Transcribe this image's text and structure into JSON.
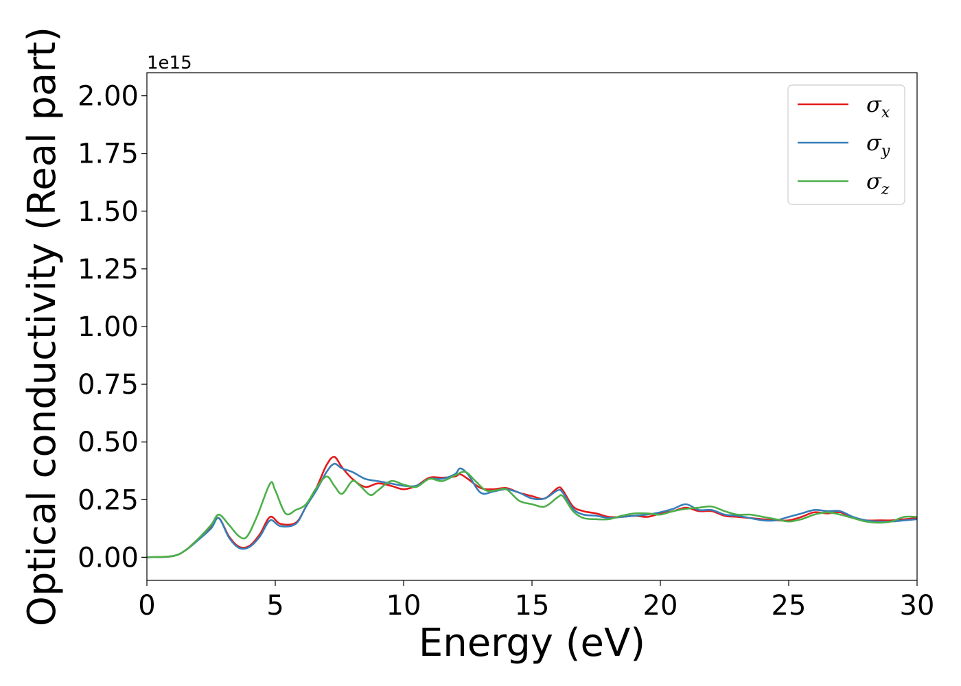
{
  "chart_data": {
    "type": "line",
    "xlabel": "Energy (eV)",
    "ylabel": "Optical conductivity (Real part)",
    "y_offset_label": "1e15",
    "xlim": [
      0,
      30
    ],
    "ylim": [
      -0.1,
      2.1
    ],
    "x_ticks": [
      0,
      5,
      10,
      15,
      20,
      25,
      30
    ],
    "x_tick_labels": [
      "0",
      "5",
      "10",
      "15",
      "20",
      "25",
      "30"
    ],
    "y_ticks": [
      0.0,
      0.25,
      0.5,
      0.75,
      1.0,
      1.25,
      1.5,
      1.75,
      2.0
    ],
    "y_tick_labels": [
      "0.00",
      "0.25",
      "0.50",
      "0.75",
      "1.00",
      "1.25",
      "1.50",
      "1.75",
      "2.00"
    ],
    "grid": false,
    "legend_position": "top-right",
    "series": [
      {
        "name": "σx",
        "symbol": "σ",
        "subscript": "x",
        "color": "#e41a1c",
        "points": [
          [
            0,
            0.0
          ],
          [
            1,
            0.005
          ],
          [
            1.5,
            0.03
          ],
          [
            2,
            0.08
          ],
          [
            2.5,
            0.13
          ],
          [
            2.8,
            0.17
          ],
          [
            3.2,
            0.09
          ],
          [
            3.6,
            0.045
          ],
          [
            4.0,
            0.05
          ],
          [
            4.4,
            0.1
          ],
          [
            4.8,
            0.175
          ],
          [
            5.2,
            0.145
          ],
          [
            5.8,
            0.15
          ],
          [
            6.2,
            0.22
          ],
          [
            6.6,
            0.3
          ],
          [
            7.0,
            0.4
          ],
          [
            7.3,
            0.435
          ],
          [
            7.6,
            0.39
          ],
          [
            8.0,
            0.34
          ],
          [
            8.5,
            0.305
          ],
          [
            9.0,
            0.32
          ],
          [
            9.5,
            0.31
          ],
          [
            10,
            0.295
          ],
          [
            10.5,
            0.31
          ],
          [
            11,
            0.345
          ],
          [
            11.5,
            0.345
          ],
          [
            12,
            0.35
          ],
          [
            12.2,
            0.36
          ],
          [
            12.5,
            0.34
          ],
          [
            13,
            0.3
          ],
          [
            13.5,
            0.295
          ],
          [
            14,
            0.3
          ],
          [
            14.5,
            0.28
          ],
          [
            15,
            0.265
          ],
          [
            15.5,
            0.255
          ],
          [
            16,
            0.3
          ],
          [
            16.2,
            0.29
          ],
          [
            16.6,
            0.22
          ],
          [
            17,
            0.2
          ],
          [
            17.5,
            0.19
          ],
          [
            18,
            0.175
          ],
          [
            18.5,
            0.175
          ],
          [
            19,
            0.18
          ],
          [
            19.5,
            0.175
          ],
          [
            20,
            0.19
          ],
          [
            20.5,
            0.2
          ],
          [
            21,
            0.215
          ],
          [
            21.5,
            0.2
          ],
          [
            22,
            0.2
          ],
          [
            22.5,
            0.18
          ],
          [
            23,
            0.175
          ],
          [
            23.5,
            0.17
          ],
          [
            24,
            0.165
          ],
          [
            24.5,
            0.16
          ],
          [
            25,
            0.16
          ],
          [
            25.5,
            0.175
          ],
          [
            26,
            0.195
          ],
          [
            26.5,
            0.19
          ],
          [
            27,
            0.195
          ],
          [
            27.5,
            0.17
          ],
          [
            28,
            0.16
          ],
          [
            28.5,
            0.16
          ],
          [
            29,
            0.16
          ],
          [
            29.5,
            0.165
          ],
          [
            30,
            0.17
          ]
        ]
      },
      {
        "name": "σy",
        "symbol": "σ",
        "subscript": "y",
        "color": "#377eb8",
        "points": [
          [
            0,
            0.0
          ],
          [
            1,
            0.005
          ],
          [
            1.5,
            0.03
          ],
          [
            2,
            0.075
          ],
          [
            2.5,
            0.125
          ],
          [
            2.8,
            0.17
          ],
          [
            3.2,
            0.085
          ],
          [
            3.6,
            0.04
          ],
          [
            4.0,
            0.045
          ],
          [
            4.4,
            0.09
          ],
          [
            4.8,
            0.16
          ],
          [
            5.2,
            0.135
          ],
          [
            5.8,
            0.145
          ],
          [
            6.2,
            0.22
          ],
          [
            6.6,
            0.29
          ],
          [
            7.0,
            0.37
          ],
          [
            7.3,
            0.405
          ],
          [
            7.6,
            0.385
          ],
          [
            8.0,
            0.37
          ],
          [
            8.5,
            0.34
          ],
          [
            9.0,
            0.33
          ],
          [
            9.5,
            0.32
          ],
          [
            10,
            0.31
          ],
          [
            10.5,
            0.31
          ],
          [
            11,
            0.34
          ],
          [
            11.5,
            0.34
          ],
          [
            12,
            0.36
          ],
          [
            12.2,
            0.385
          ],
          [
            12.5,
            0.36
          ],
          [
            13,
            0.28
          ],
          [
            13.5,
            0.285
          ],
          [
            14,
            0.295
          ],
          [
            14.5,
            0.28
          ],
          [
            15,
            0.255
          ],
          [
            15.5,
            0.255
          ],
          [
            16,
            0.29
          ],
          [
            16.2,
            0.28
          ],
          [
            16.6,
            0.21
          ],
          [
            17,
            0.185
          ],
          [
            17.5,
            0.18
          ],
          [
            18,
            0.17
          ],
          [
            18.5,
            0.175
          ],
          [
            19,
            0.18
          ],
          [
            19.5,
            0.185
          ],
          [
            20,
            0.195
          ],
          [
            20.5,
            0.21
          ],
          [
            21,
            0.23
          ],
          [
            21.5,
            0.205
          ],
          [
            22,
            0.205
          ],
          [
            22.5,
            0.185
          ],
          [
            23,
            0.18
          ],
          [
            23.5,
            0.17
          ],
          [
            24,
            0.16
          ],
          [
            24.5,
            0.16
          ],
          [
            25,
            0.175
          ],
          [
            25.5,
            0.19
          ],
          [
            26,
            0.205
          ],
          [
            26.5,
            0.2
          ],
          [
            27,
            0.2
          ],
          [
            27.5,
            0.175
          ],
          [
            28,
            0.16
          ],
          [
            28.5,
            0.155
          ],
          [
            29,
            0.155
          ],
          [
            29.5,
            0.16
          ],
          [
            30,
            0.165
          ]
        ]
      },
      {
        "name": "σz",
        "symbol": "σ",
        "subscript": "z",
        "color": "#4daf4a",
        "points": [
          [
            0,
            0.0
          ],
          [
            1,
            0.005
          ],
          [
            1.5,
            0.03
          ],
          [
            2,
            0.08
          ],
          [
            2.5,
            0.14
          ],
          [
            2.8,
            0.185
          ],
          [
            3.2,
            0.14
          ],
          [
            3.6,
            0.09
          ],
          [
            3.9,
            0.09
          ],
          [
            4.3,
            0.18
          ],
          [
            4.8,
            0.32
          ],
          [
            5.0,
            0.29
          ],
          [
            5.4,
            0.19
          ],
          [
            5.8,
            0.205
          ],
          [
            6.2,
            0.23
          ],
          [
            6.6,
            0.3
          ],
          [
            7.0,
            0.35
          ],
          [
            7.3,
            0.31
          ],
          [
            7.6,
            0.275
          ],
          [
            8.0,
            0.33
          ],
          [
            8.3,
            0.31
          ],
          [
            8.7,
            0.27
          ],
          [
            9.0,
            0.29
          ],
          [
            9.5,
            0.33
          ],
          [
            10,
            0.315
          ],
          [
            10.5,
            0.305
          ],
          [
            11,
            0.34
          ],
          [
            11.5,
            0.33
          ],
          [
            12,
            0.355
          ],
          [
            12.4,
            0.37
          ],
          [
            12.8,
            0.33
          ],
          [
            13.2,
            0.29
          ],
          [
            13.6,
            0.29
          ],
          [
            14,
            0.295
          ],
          [
            14.5,
            0.245
          ],
          [
            15,
            0.23
          ],
          [
            15.5,
            0.22
          ],
          [
            16,
            0.26
          ],
          [
            16.2,
            0.265
          ],
          [
            16.6,
            0.2
          ],
          [
            17,
            0.17
          ],
          [
            17.5,
            0.165
          ],
          [
            18,
            0.165
          ],
          [
            18.5,
            0.18
          ],
          [
            19,
            0.19
          ],
          [
            19.5,
            0.19
          ],
          [
            20,
            0.185
          ],
          [
            20.5,
            0.2
          ],
          [
            21,
            0.21
          ],
          [
            21.5,
            0.215
          ],
          [
            22,
            0.22
          ],
          [
            22.5,
            0.2
          ],
          [
            23,
            0.185
          ],
          [
            23.5,
            0.185
          ],
          [
            24,
            0.175
          ],
          [
            24.5,
            0.165
          ],
          [
            25,
            0.155
          ],
          [
            25.5,
            0.165
          ],
          [
            26,
            0.185
          ],
          [
            26.5,
            0.195
          ],
          [
            27,
            0.185
          ],
          [
            27.5,
            0.17
          ],
          [
            28,
            0.155
          ],
          [
            28.5,
            0.15
          ],
          [
            29,
            0.155
          ],
          [
            29.5,
            0.175
          ],
          [
            30,
            0.175
          ]
        ]
      }
    ]
  }
}
